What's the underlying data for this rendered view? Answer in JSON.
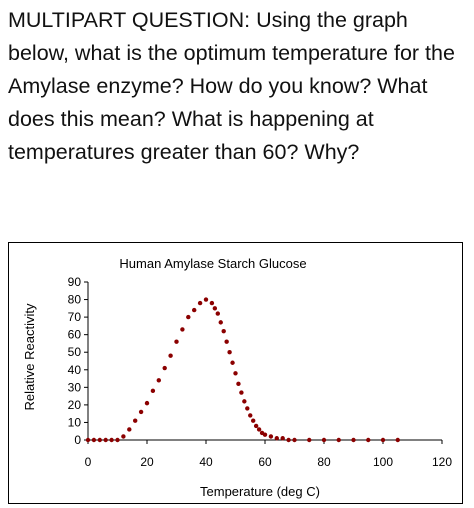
{
  "question": {
    "text": "MULTIPART QUESTION: Using the graph below, what is the optimum temperature for the Amylase enzyme? How do you know? What does this mean? What is happening at temperatures greater than 60? Why?"
  },
  "chart_data": {
    "type": "scatter",
    "title": "Human Amylase Starch Glucose",
    "xlabel": "Temperature (deg C)",
    "ylabel": "Relative Reactivity",
    "xlim": [
      0,
      120
    ],
    "ylim": [
      0,
      90
    ],
    "xticks": [
      0,
      20,
      40,
      60,
      80,
      100,
      120
    ],
    "yticks": [
      0,
      10,
      20,
      30,
      40,
      50,
      60,
      70,
      80,
      90
    ],
    "grid": false,
    "legend": "none",
    "marker_color": "#8b0000",
    "series": [
      {
        "x": [
          0,
          2,
          4,
          6,
          8,
          10,
          12,
          14,
          16,
          18,
          20,
          22,
          24,
          26,
          28,
          30,
          32,
          34,
          36,
          38,
          40,
          42,
          43,
          44,
          45,
          46,
          47,
          48,
          49,
          50,
          51,
          52,
          53,
          54,
          55,
          56,
          57,
          58,
          59,
          60,
          62,
          64,
          66,
          68,
          70,
          75,
          80,
          85,
          90,
          95,
          100,
          105
        ],
        "y": [
          0,
          0,
          0,
          0,
          0,
          0,
          2,
          6,
          11,
          16,
          21,
          28,
          34,
          41,
          48,
          56,
          63,
          70,
          74,
          78,
          80,
          78,
          75,
          72,
          67,
          62,
          56,
          50,
          44,
          38,
          32,
          27,
          22,
          18,
          14,
          11,
          8,
          6,
          4,
          3,
          2,
          1,
          1,
          0,
          0,
          0,
          0,
          0,
          0,
          0,
          0,
          0
        ]
      }
    ]
  }
}
